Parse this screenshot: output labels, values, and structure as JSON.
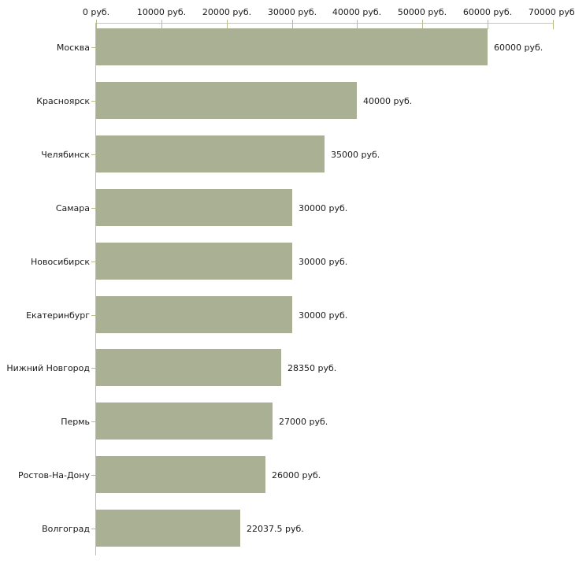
{
  "chart_data": {
    "type": "bar",
    "orientation": "horizontal",
    "title": "",
    "xlabel": "",
    "ylabel": "",
    "unit": "руб.",
    "categories": [
      "Москва",
      "Красноярск",
      "Челябинск",
      "Самара",
      "Новосибирск",
      "Екатеринбург",
      "Нижний Новгород",
      "Пермь",
      "Ростов-На-Дону",
      "Волгоград"
    ],
    "values": [
      60000,
      40000,
      35000,
      30000,
      30000,
      30000,
      28350,
      27000,
      26000,
      22037.5
    ],
    "value_labels": [
      "60000 руб.",
      "40000 руб.",
      "35000 руб.",
      "30000 руб.",
      "30000 руб.",
      "30000 руб.",
      "28350 руб.",
      "27000 руб.",
      "26000 руб.",
      "22037.5 руб."
    ],
    "x_ticks": [
      {
        "value": 0,
        "label": "0 руб."
      },
      {
        "value": 10000,
        "label": "10000 руб."
      },
      {
        "value": 20000,
        "label": "20000 руб."
      },
      {
        "value": 30000,
        "label": "30000 руб."
      },
      {
        "value": 40000,
        "label": "40000 руб."
      },
      {
        "value": 50000,
        "label": "50000 руб."
      },
      {
        "value": 60000,
        "label": "60000 руб."
      },
      {
        "value": 70000,
        "label": "70000 руб."
      }
    ],
    "xlim": [
      0,
      70000
    ],
    "grid": false,
    "legend": false,
    "colors": {
      "bar": "#AAB094",
      "x_axis_line": "#CCCC99",
      "x_tick": "#BBBB88",
      "y_axis_line": "#BBBBBB",
      "y_tick": "#BBBB88",
      "text": "#1A1A1A",
      "background": "#FFFFFF"
    }
  }
}
